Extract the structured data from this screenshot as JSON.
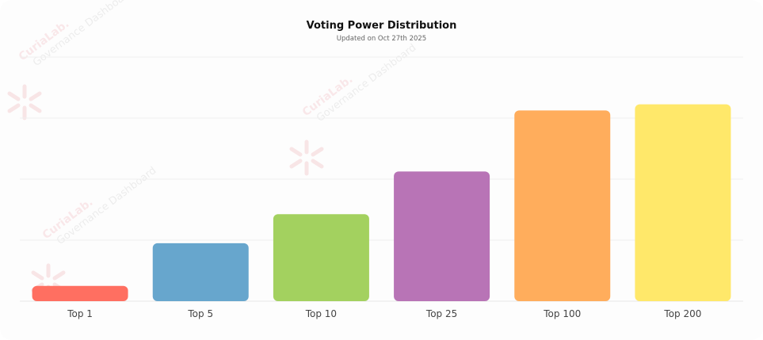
{
  "chart_data": {
    "type": "bar",
    "title": "Voting Power Distribution",
    "subtitle": "Updated on Oct 27th 2025",
    "categories": [
      "Top 1",
      "Top 5",
      "Top 10",
      "Top 25",
      "Top 100",
      "Top 200"
    ],
    "values": [
      5,
      19,
      28.5,
      42.5,
      62.5,
      64.5
    ],
    "ylim": [
      0,
      80
    ],
    "grid": true,
    "colors": [
      "#ff6f61",
      "#67a6cd",
      "#a3d15f",
      "#b874b6",
      "#ffad5c",
      "#ffe86a"
    ]
  },
  "watermark": {
    "brand": "CuriaLab.",
    "label": "Governance Dashboard",
    "icon": "curialab-logo-icon"
  }
}
